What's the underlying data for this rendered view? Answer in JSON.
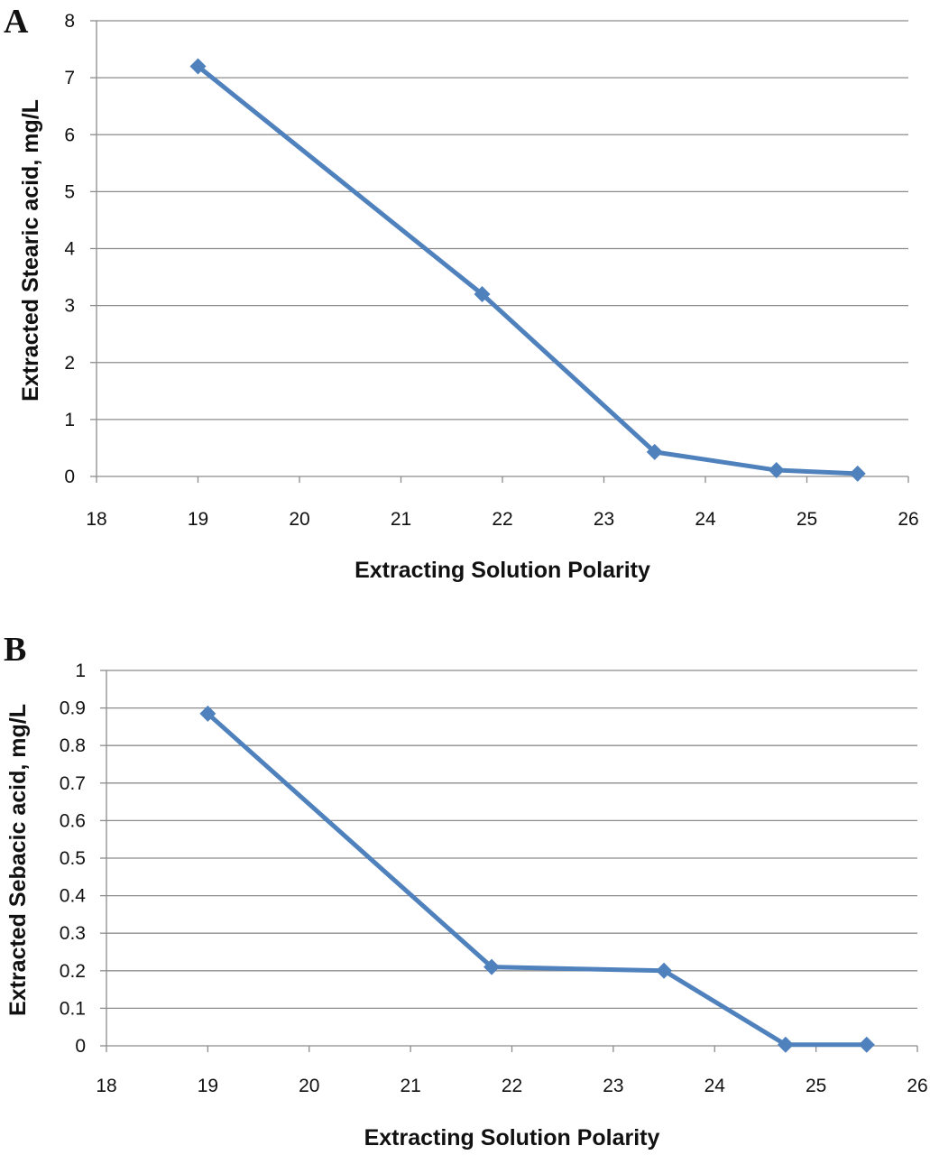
{
  "chart_data": [
    {
      "type": "line",
      "panel_label": "A",
      "xlabel": "Extracting Solution Polarity",
      "ylabel": "Extracted Stearic acid, mg/L",
      "xlim": [
        18,
        26
      ],
      "ylim": [
        0,
        8
      ],
      "x_ticks": [
        "18",
        "19",
        "20",
        "21",
        "22",
        "23",
        "24",
        "25",
        "26"
      ],
      "y_ticks": [
        "0",
        "1",
        "2",
        "3",
        "4",
        "5",
        "6",
        "7",
        "8"
      ],
      "grid": true,
      "marker": "diamond",
      "color": "#4f81bd",
      "x": [
        19,
        21.8,
        23.5,
        24.7,
        25.5
      ],
      "values": [
        7.2,
        3.2,
        0.43,
        0.11,
        0.05
      ]
    },
    {
      "type": "line",
      "panel_label": "B",
      "xlabel": "Extracting Solution Polarity",
      "ylabel": "Extracted Sebacic acid, mg/L",
      "xlim": [
        18,
        26
      ],
      "ylim": [
        0,
        1
      ],
      "x_ticks": [
        "18",
        "19",
        "20",
        "21",
        "22",
        "23",
        "24",
        "25",
        "26"
      ],
      "y_ticks": [
        "0",
        "0.1",
        "0.2",
        "0.3",
        "0.4",
        "0.5",
        "0.6",
        "0.7",
        "0.8",
        "0.9",
        "1"
      ],
      "grid": true,
      "marker": "diamond",
      "color": "#4f81bd",
      "x": [
        19,
        21.8,
        23.5,
        24.7,
        25.5
      ],
      "values": [
        0.885,
        0.21,
        0.2,
        0.003,
        0.003
      ]
    }
  ]
}
